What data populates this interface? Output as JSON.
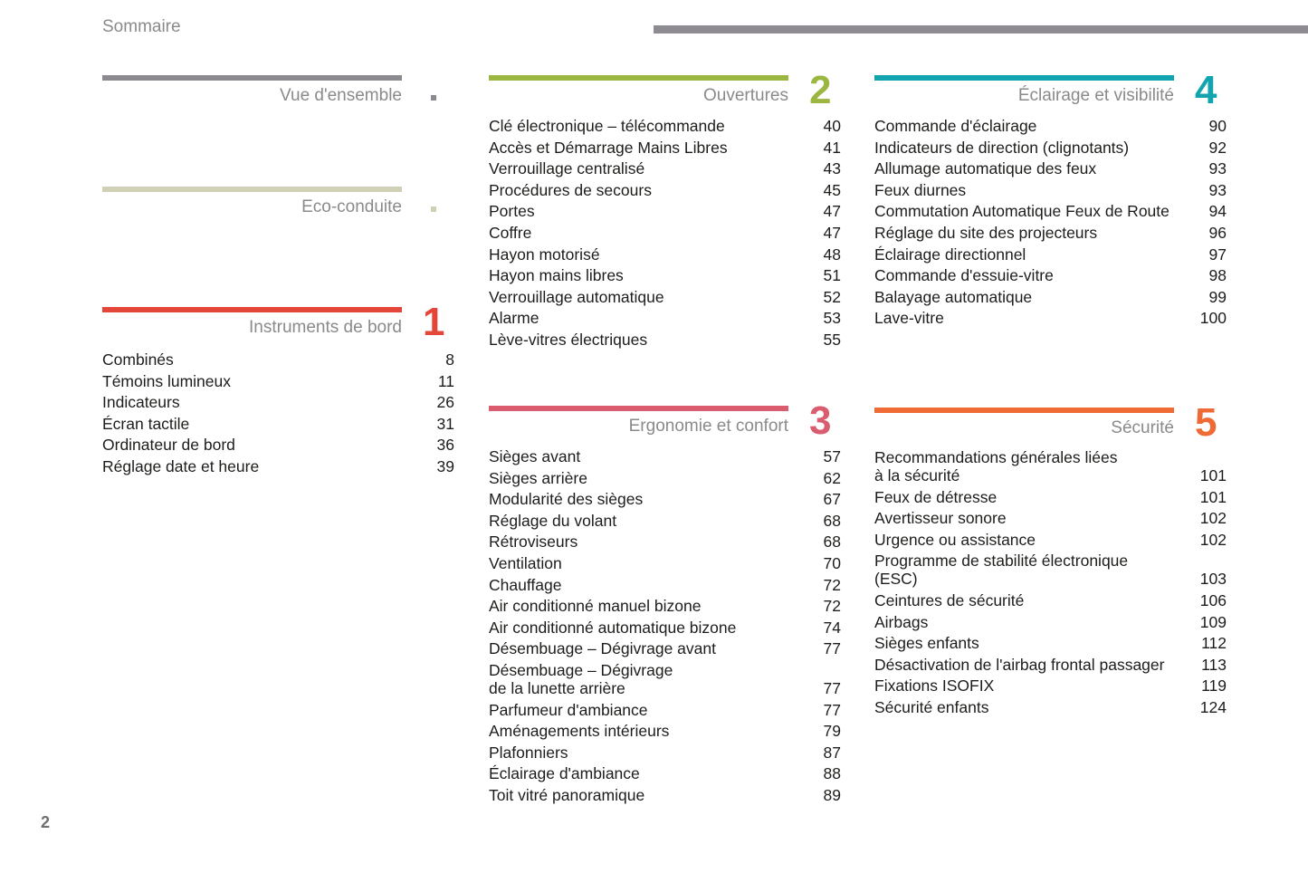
{
  "header": {
    "title": "Sommaire"
  },
  "page_number": "2",
  "sections": [
    {
      "id": "vue",
      "title": "Vue d'ensemble",
      "marker": "square",
      "color": "#8c8a90",
      "items": []
    },
    {
      "id": "eco",
      "title": "Eco-conduite",
      "marker": "square",
      "color": "#cfd0b6",
      "items": []
    },
    {
      "id": "s1",
      "title": "Instruments de bord",
      "number": "1",
      "color": "#e4473a",
      "items": [
        {
          "label": "Combinés",
          "page": "8"
        },
        {
          "label": "Témoins lumineux",
          "page": "11"
        },
        {
          "label": "Indicateurs",
          "page": "26"
        },
        {
          "label": "Écran tactile",
          "page": "31"
        },
        {
          "label": "Ordinateur de bord",
          "page": "36"
        },
        {
          "label": "Réglage date et heure",
          "page": "39"
        }
      ]
    },
    {
      "id": "s2",
      "title": "Ouvertures",
      "number": "2",
      "color": "#9cb642",
      "items": [
        {
          "label": "Clé électronique – télécommande",
          "page": "40"
        },
        {
          "label": "Accès et Démarrage Mains Libres",
          "page": "41"
        },
        {
          "label": "Verrouillage centralisé",
          "page": "43"
        },
        {
          "label": "Procédures de secours",
          "page": "45"
        },
        {
          "label": "Portes",
          "page": "47"
        },
        {
          "label": "Coffre",
          "page": "47"
        },
        {
          "label": "Hayon motorisé",
          "page": "48"
        },
        {
          "label": "Hayon mains libres",
          "page": "51"
        },
        {
          "label": "Verrouillage automatique",
          "page": "52"
        },
        {
          "label": "Alarme",
          "page": "53"
        },
        {
          "label": "Lève-vitres électriques",
          "page": "55"
        }
      ]
    },
    {
      "id": "s3",
      "title": "Ergonomie et confort",
      "number": "3",
      "color": "#d95d6f",
      "items": [
        {
          "label": "Sièges avant",
          "page": "57"
        },
        {
          "label": "Sièges arrière",
          "page": "62"
        },
        {
          "label": "Modularité des sièges",
          "page": "67"
        },
        {
          "label": "Réglage du volant",
          "page": "68"
        },
        {
          "label": "Rétroviseurs",
          "page": "68"
        },
        {
          "label": "Ventilation",
          "page": "70"
        },
        {
          "label": "Chauffage",
          "page": "72"
        },
        {
          "label": "Air conditionné manuel bizone",
          "page": "72"
        },
        {
          "label": "Air conditionné automatique bizone",
          "page": "74"
        },
        {
          "label": "Désembuage – Dégivrage avant",
          "page": "77"
        },
        {
          "label": "Désembuage – Dégivrage\nde la lunette arrière",
          "page": "77"
        },
        {
          "label": "Parfumeur d'ambiance",
          "page": "77"
        },
        {
          "label": "Aménagements intérieurs",
          "page": "79"
        },
        {
          "label": "Plafonniers",
          "page": "87"
        },
        {
          "label": "Éclairage d'ambiance",
          "page": "88"
        },
        {
          "label": "Toit vitré panoramique",
          "page": "89"
        }
      ]
    },
    {
      "id": "s4",
      "title": "Éclairage et visibilité",
      "number": "4",
      "color": "#12a5b0",
      "items": [
        {
          "label": "Commande d'éclairage",
          "page": "90"
        },
        {
          "label": "Indicateurs de direction (clignotants)",
          "page": "92"
        },
        {
          "label": "Allumage automatique des feux",
          "page": "93"
        },
        {
          "label": "Feux diurnes",
          "page": "93"
        },
        {
          "label": "Commutation Automatique Feux de Route",
          "page": "94"
        },
        {
          "label": "Réglage du site des projecteurs",
          "page": "96"
        },
        {
          "label": "Éclairage directionnel",
          "page": "97"
        },
        {
          "label": "Commande d'essuie-vitre",
          "page": "98"
        },
        {
          "label": "Balayage automatique",
          "page": "99"
        },
        {
          "label": "Lave-vitre",
          "page": "100"
        }
      ]
    },
    {
      "id": "s5",
      "title": "Sécurité",
      "number": "5",
      "color": "#f06a35",
      "items": [
        {
          "label": "Recommandations générales liées\nà la sécurité",
          "page": "101"
        },
        {
          "label": "Feux de détresse",
          "page": "101"
        },
        {
          "label": "Avertisseur sonore",
          "page": "102"
        },
        {
          "label": "Urgence ou assistance",
          "page": "102"
        },
        {
          "label": "Programme de stabilité électronique\n(ESC)",
          "page": "103"
        },
        {
          "label": "Ceintures de sécurité",
          "page": "106"
        },
        {
          "label": "Airbags",
          "page": "109"
        },
        {
          "label": "Sièges enfants",
          "page": "112"
        },
        {
          "label": "Désactivation de l'airbag frontal passager",
          "page": "113"
        },
        {
          "label": "Fixations ISOFIX",
          "page": "119"
        },
        {
          "label": "Sécurité enfants",
          "page": "124"
        }
      ]
    }
  ]
}
